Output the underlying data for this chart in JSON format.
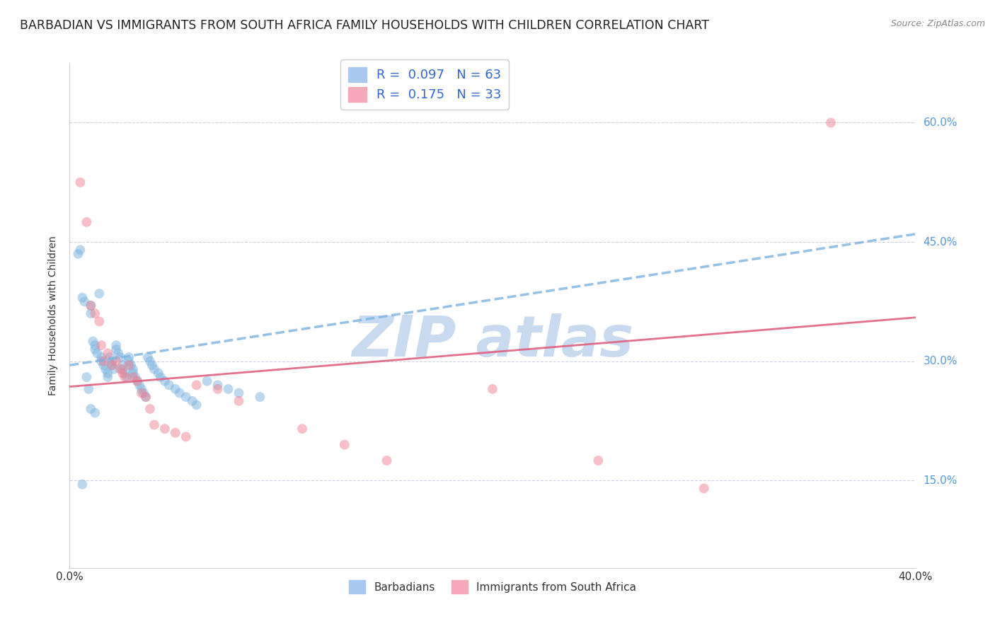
{
  "title": "BARBADIAN VS IMMIGRANTS FROM SOUTH AFRICA FAMILY HOUSEHOLDS WITH CHILDREN CORRELATION CHART",
  "source": "Source: ZipAtlas.com",
  "ylabel": "Family Households with Children",
  "ytick_labels": [
    "15.0%",
    "30.0%",
    "45.0%",
    "60.0%"
  ],
  "ytick_values": [
    0.15,
    0.3,
    0.45,
    0.6
  ],
  "xlim": [
    0.0,
    0.4
  ],
  "ylim": [
    0.04,
    0.675
  ],
  "blue_scatter_x": [
    0.004,
    0.005,
    0.006,
    0.007,
    0.008,
    0.009,
    0.01,
    0.01,
    0.011,
    0.012,
    0.012,
    0.013,
    0.014,
    0.015,
    0.015,
    0.016,
    0.017,
    0.018,
    0.018,
    0.019,
    0.02,
    0.02,
    0.021,
    0.022,
    0.022,
    0.023,
    0.024,
    0.025,
    0.025,
    0.026,
    0.027,
    0.028,
    0.028,
    0.029,
    0.03,
    0.03,
    0.031,
    0.032,
    0.033,
    0.034,
    0.035,
    0.036,
    0.037,
    0.038,
    0.039,
    0.04,
    0.042,
    0.043,
    0.045,
    0.047,
    0.05,
    0.052,
    0.055,
    0.058,
    0.06,
    0.065,
    0.07,
    0.075,
    0.08,
    0.09,
    0.01,
    0.012,
    0.006
  ],
  "blue_scatter_y": [
    0.435,
    0.44,
    0.38,
    0.375,
    0.28,
    0.265,
    0.37,
    0.36,
    0.325,
    0.32,
    0.315,
    0.31,
    0.385,
    0.305,
    0.3,
    0.295,
    0.29,
    0.285,
    0.28,
    0.305,
    0.3,
    0.295,
    0.29,
    0.32,
    0.315,
    0.31,
    0.305,
    0.295,
    0.29,
    0.285,
    0.28,
    0.305,
    0.3,
    0.295,
    0.29,
    0.285,
    0.28,
    0.275,
    0.27,
    0.265,
    0.26,
    0.255,
    0.305,
    0.3,
    0.295,
    0.29,
    0.285,
    0.28,
    0.275,
    0.27,
    0.265,
    0.26,
    0.255,
    0.25,
    0.245,
    0.275,
    0.27,
    0.265,
    0.26,
    0.255,
    0.24,
    0.235,
    0.145
  ],
  "pink_scatter_x": [
    0.005,
    0.008,
    0.01,
    0.012,
    0.014,
    0.015,
    0.016,
    0.018,
    0.02,
    0.022,
    0.024,
    0.025,
    0.026,
    0.028,
    0.03,
    0.032,
    0.034,
    0.036,
    0.038,
    0.04,
    0.045,
    0.05,
    0.055,
    0.06,
    0.07,
    0.08,
    0.11,
    0.13,
    0.15,
    0.2,
    0.25,
    0.3,
    0.36
  ],
  "pink_scatter_y": [
    0.525,
    0.475,
    0.37,
    0.36,
    0.35,
    0.32,
    0.3,
    0.31,
    0.295,
    0.3,
    0.29,
    0.285,
    0.28,
    0.295,
    0.28,
    0.275,
    0.26,
    0.255,
    0.24,
    0.22,
    0.215,
    0.21,
    0.205,
    0.27,
    0.265,
    0.25,
    0.215,
    0.195,
    0.175,
    0.265,
    0.175,
    0.14,
    0.6
  ],
  "blue_trendline_x0": 0.0,
  "blue_trendline_y0": 0.295,
  "blue_trendline_x1": 0.4,
  "blue_trendline_y1": 0.46,
  "pink_trendline_x0": 0.0,
  "pink_trendline_y0": 0.268,
  "pink_trendline_x1": 0.4,
  "pink_trendline_y1": 0.355,
  "blue_color": "#7ab3e0",
  "pink_color": "#f08090",
  "blue_trendline_color": "#7ab3e0",
  "pink_trendline_color": "#e06080",
  "watermark_color": "#c8daf0",
  "background_color": "#ffffff",
  "grid_color": "#d0d0e0",
  "title_fontsize": 12.5,
  "label_fontsize": 10,
  "tick_fontsize": 11
}
